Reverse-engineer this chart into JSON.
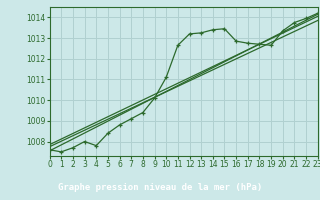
{
  "title": "Graphe pression niveau de la mer (hPa)",
  "bg_color": "#cce8e8",
  "grid_color": "#b0d0d0",
  "line_color": "#2d6a2d",
  "axis_bg": "#cce8e8",
  "label_bg": "#2d6a2d",
  "label_fg": "#ffffff",
  "xlim": [
    0,
    23
  ],
  "ylim": [
    1007.3,
    1014.5
  ],
  "yticks": [
    1008,
    1009,
    1010,
    1011,
    1012,
    1013,
    1014
  ],
  "xticks": [
    0,
    1,
    2,
    3,
    4,
    5,
    6,
    7,
    8,
    9,
    10,
    11,
    12,
    13,
    14,
    15,
    16,
    17,
    18,
    19,
    20,
    21,
    22,
    23
  ],
  "main_x": [
    0,
    1,
    2,
    3,
    4,
    5,
    6,
    7,
    8,
    9,
    10,
    11,
    12,
    13,
    14,
    15,
    16,
    17,
    18,
    19,
    20,
    21,
    22,
    23
  ],
  "main_y": [
    1007.6,
    1007.5,
    1007.7,
    1008.0,
    1007.8,
    1008.4,
    1008.8,
    1009.1,
    1009.4,
    1010.1,
    1011.1,
    1012.65,
    1013.2,
    1013.25,
    1013.4,
    1013.45,
    1012.85,
    1012.75,
    1012.7,
    1012.65,
    1013.35,
    1013.75,
    1013.95,
    1014.2
  ],
  "trend1_x": [
    0,
    23
  ],
  "trend1_y": [
    1007.55,
    1014.15
  ],
  "trend2_x": [
    0,
    23
  ],
  "trend2_y": [
    1007.75,
    1013.85
  ],
  "trend3_x": [
    0,
    23
  ],
  "trend3_y": [
    1007.85,
    1014.05
  ],
  "title_fontsize": 6.5,
  "tick_fontsize": 5.5
}
